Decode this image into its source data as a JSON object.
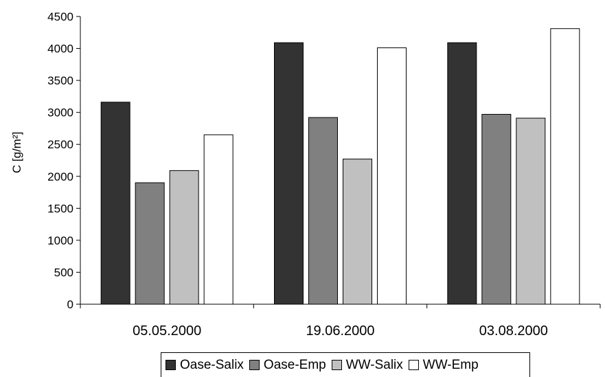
{
  "chart_data": {
    "type": "bar",
    "title": "",
    "xlabel": "",
    "ylabel": "C [g/m²]",
    "ylim": [
      0,
      4500
    ],
    "yticks": [
      0,
      500,
      1000,
      1500,
      2000,
      2500,
      3000,
      3500,
      4000,
      4500
    ],
    "categories": [
      "05.05.2000",
      "19.06.2000",
      "03.08.2000"
    ],
    "series": [
      {
        "name": "Oase-Salix",
        "color": "#333333",
        "values": [
          3160,
          4090,
          4090
        ]
      },
      {
        "name": "Oase-Emp",
        "color": "#808080",
        "values": [
          1900,
          2920,
          2970
        ]
      },
      {
        "name": "WW-Salix",
        "color": "#c0c0c0",
        "values": [
          2090,
          2270,
          2910
        ]
      },
      {
        "name": "WW-Emp",
        "color": "#ffffff",
        "values": [
          2650,
          4010,
          4310
        ]
      }
    ],
    "legend_position": "bottom",
    "grid": false
  }
}
